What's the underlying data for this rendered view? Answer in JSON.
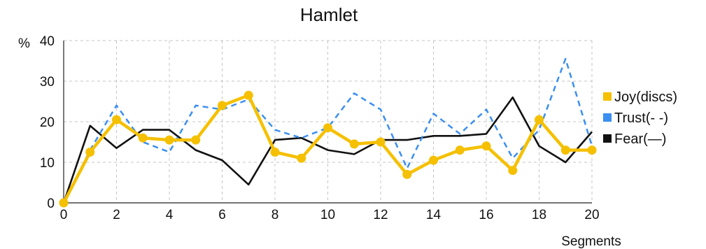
{
  "chart_data": {
    "type": "line",
    "title": "Hamlet",
    "xlabel": "Segments",
    "ylabel": "%",
    "xlim": [
      0,
      20
    ],
    "ylim": [
      0,
      40
    ],
    "x_ticks": [
      0,
      2,
      4,
      6,
      8,
      10,
      12,
      14,
      16,
      18,
      20
    ],
    "y_ticks": [
      0,
      10,
      20,
      30,
      40
    ],
    "grid": true,
    "legend_position": "right",
    "x": [
      0,
      1,
      2,
      3,
      4,
      5,
      6,
      7,
      8,
      9,
      10,
      11,
      12,
      13,
      14,
      15,
      16,
      17,
      18,
      19,
      20
    ],
    "series": [
      {
        "name": "Joy(discs)",
        "color": "#f5c000",
        "style": "solid-markers",
        "values": [
          0,
          12.5,
          20.5,
          16,
          15.5,
          15.5,
          24,
          26.5,
          12.5,
          11,
          18.5,
          14.5,
          15,
          7,
          10.5,
          13,
          14,
          8,
          20.5,
          13,
          13
        ]
      },
      {
        "name": "Trust(- -)",
        "color": "#3b8ff0",
        "style": "dashed",
        "values": [
          0,
          13,
          24,
          15,
          12.5,
          24,
          23,
          25.5,
          18,
          16,
          18.5,
          27,
          23,
          8.5,
          22,
          17,
          23,
          11,
          18,
          35.5,
          14
        ]
      },
      {
        "name": "Fear(—)",
        "color": "#111111",
        "style": "solid",
        "values": [
          0,
          19,
          13.5,
          18,
          18,
          13,
          10.5,
          4.5,
          15.5,
          16,
          13,
          12,
          15.5,
          15.5,
          16.5,
          16.5,
          17,
          26,
          14,
          10,
          17.5
        ]
      }
    ]
  }
}
